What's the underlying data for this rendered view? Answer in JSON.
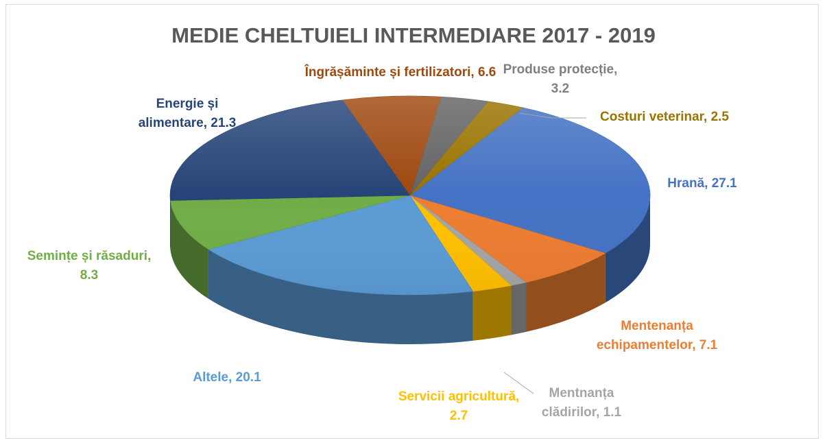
{
  "chart_data": {
    "type": "pie",
    "title": "MEDIE CHELTUIELI INTERMEDIARE 2017 - 2019",
    "style": "3d-tilted",
    "slices": [
      {
        "label_lines": [
          "Hrană, 27.1"
        ],
        "value": 27.1,
        "color": "#4472C4"
      },
      {
        "label_lines": [
          "Mentenanța",
          "echipamentelor, 7.1"
        ],
        "value": 7.1,
        "color": "#ED7D31"
      },
      {
        "label_lines": [
          "Mentnanța",
          "clădirilor, 1.1"
        ],
        "value": 1.1,
        "color": "#A5A5A5"
      },
      {
        "label_lines": [
          "Servicii agricultură,",
          "2.7"
        ],
        "value": 2.7,
        "color": "#FFC000"
      },
      {
        "label_lines": [
          "Altele, 20.1"
        ],
        "value": 20.1,
        "color": "#5B9BD5"
      },
      {
        "label_lines": [
          "Seminṭe și răsaduri,",
          "8.3"
        ],
        "value": 8.3,
        "color": "#70AD47"
      },
      {
        "label_lines": [
          "Energie și",
          "alimentare, 21.3"
        ],
        "value": 21.3,
        "color": "#264478"
      },
      {
        "label_lines": [
          "Îngrășăminte și fertilizatori, 6.6"
        ],
        "value": 6.6,
        "color": "#9E480E"
      },
      {
        "label_lines": [
          "Produse protecție,",
          "3.2"
        ],
        "value": 3.2,
        "color": "#636363"
      },
      {
        "label_lines": [
          "Costuri veterinar, 2.5"
        ],
        "value": 2.5,
        "color": "#997300"
      }
    ],
    "label_colors": [
      "#4472C4",
      "#ED7D31",
      "#A5A5A5",
      "#FFC000",
      "#5B9BD5",
      "#70AD47",
      "#264478",
      "#9E480E",
      "#7F7F7F",
      "#997300"
    ]
  }
}
